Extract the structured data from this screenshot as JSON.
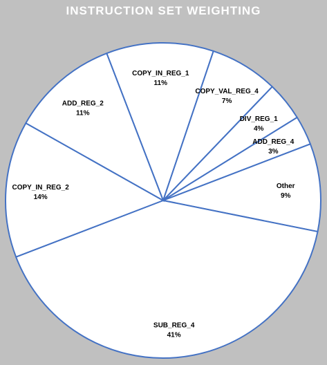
{
  "chart_data": {
    "type": "pie",
    "title": "INSTRUCTION SET WEIGHTING",
    "start_angle_deg": -21,
    "direction": "clockwise",
    "slices": [
      {
        "label": "COPY_IN_REG_1",
        "value": 11,
        "value_label": "11%"
      },
      {
        "label": "COPY_VAL_REG_4",
        "value": 7,
        "value_label": "7%"
      },
      {
        "label": "DIV_REG_1",
        "value": 4,
        "value_label": "4%"
      },
      {
        "label": "ADD_REG_4",
        "value": 3,
        "value_label": "3%"
      },
      {
        "label": "Other",
        "value": 9,
        "value_label": "9%"
      },
      {
        "label": "SUB_REG_4",
        "value": 41,
        "value_label": "41%"
      },
      {
        "label": "COPY_IN_REG_2",
        "value": 14,
        "value_label": "14%"
      },
      {
        "label": "ADD_REG_2",
        "value": 11,
        "value_label": "11%"
      }
    ],
    "colors": {
      "background": "#c0c0c0",
      "slice_fill": "#ffffff",
      "slice_stroke": "#4472c4",
      "title": "#ffffff",
      "label": "#000000"
    }
  }
}
